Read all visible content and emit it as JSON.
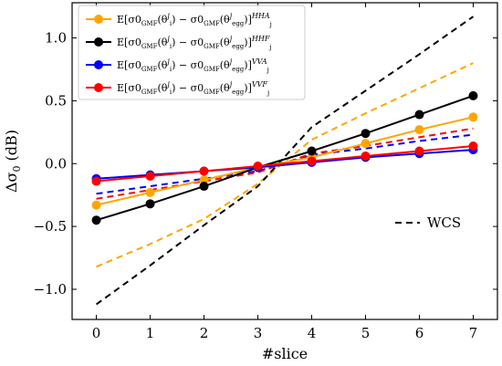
{
  "chart_data": {
    "type": "line",
    "xlabel": "#slice",
    "ylabel": "Δσ",
    "ylabel_sub": "0",
    "ylabel_unit": " (dB)",
    "xlim": [
      -0.45,
      7.45
    ],
    "ylim": [
      -1.24,
      1.28
    ],
    "x_ticks": [
      0,
      1,
      2,
      3,
      4,
      5,
      6,
      7
    ],
    "y_ticks": [
      -1.0,
      -0.5,
      0.0,
      0.5,
      1.0
    ],
    "y_tick_labels": [
      "−1.0",
      "−0.5",
      "0.0",
      "0.5",
      "1.0"
    ],
    "x": [
      0,
      1,
      2,
      3,
      4,
      5,
      6,
      7
    ],
    "series": [
      {
        "name": "HHA",
        "color": "#ffa500",
        "style": "solid-marker",
        "values": [
          -0.33,
          -0.23,
          -0.13,
          -0.03,
          0.05,
          0.16,
          0.27,
          0.37
        ]
      },
      {
        "name": "HHF",
        "color": "#000000",
        "style": "solid-marker",
        "values": [
          -0.45,
          -0.32,
          -0.18,
          -0.03,
          0.1,
          0.24,
          0.39,
          0.54
        ]
      },
      {
        "name": "VVA",
        "color": "#0000ff",
        "style": "solid-marker",
        "values": [
          -0.12,
          -0.09,
          -0.06,
          -0.03,
          0.01,
          0.05,
          0.08,
          0.11
        ]
      },
      {
        "name": "VVF",
        "color": "#ff0000",
        "style": "solid-marker",
        "values": [
          -0.14,
          -0.1,
          -0.06,
          -0.02,
          0.02,
          0.06,
          0.1,
          0.14
        ]
      },
      {
        "name": "HHA-dashed",
        "color": "#ffa500",
        "style": "dashed",
        "values": [
          -0.82,
          -0.64,
          -0.44,
          -0.16,
          0.19,
          0.4,
          0.6,
          0.8
        ]
      },
      {
        "name": "HHF-dashed",
        "color": "#000000",
        "style": "dashed",
        "values": [
          -1.12,
          -0.81,
          -0.49,
          -0.18,
          0.29,
          0.58,
          0.87,
          1.17
        ]
      },
      {
        "name": "VVA-dashed",
        "color": "#0000ff",
        "style": "dashed",
        "values": [
          -0.24,
          -0.18,
          -0.12,
          -0.06,
          0.07,
          0.12,
          0.18,
          0.23
        ]
      },
      {
        "name": "VVF-dashed",
        "color": "#ff0000",
        "style": "dashed",
        "values": [
          -0.28,
          -0.21,
          -0.14,
          -0.07,
          0.08,
          0.14,
          0.21,
          0.28
        ]
      }
    ],
    "legend": {
      "placement": "top-left",
      "entries": [
        {
          "prefix": "E[σ0",
          "sub1": "GMF",
          "mid1": "(θ",
          "sup2": "j",
          "sub2": "i",
          "mid2": ") − σ0",
          "sub3": "GMF",
          "mid3": "(θ",
          "sup4": "j",
          "sub4": "egg",
          "end": ")]",
          "sup5": "HHA",
          "sub5": "j",
          "color": "#ffa500"
        },
        {
          "prefix": "E[σ0",
          "sub1": "GMF",
          "mid1": "(θ",
          "sup2": "j",
          "sub2": "i",
          "mid2": ") − σ0",
          "sub3": "GMF",
          "mid3": "(θ",
          "sup4": "j",
          "sub4": "egg",
          "end": ")]",
          "sup5": "HHF",
          "sub5": "j",
          "color": "#000000"
        },
        {
          "prefix": "E[σ0",
          "sub1": "GMF",
          "mid1": "(θ",
          "sup2": "j",
          "sub2": "i",
          "mid2": ") − σ0",
          "sub3": "GMF",
          "mid3": "(θ",
          "sup4": "j",
          "sub4": "egg",
          "end": ")]",
          "sup5": "VVA",
          "sub5": "j",
          "color": "#0000ff"
        },
        {
          "prefix": "E[σ0",
          "sub1": "GMF",
          "mid1": "(θ",
          "sup2": "j",
          "sub2": "i",
          "mid2": ") − σ0",
          "sub3": "GMF",
          "mid3": "(θ",
          "sup4": "j",
          "sub4": "egg",
          "end": ")]",
          "sup5": "VVF",
          "sub5": "j",
          "color": "#ff0000"
        }
      ]
    },
    "annotation_legend": {
      "label": "WCS",
      "placement": "middle-right",
      "color": "#000000"
    }
  }
}
